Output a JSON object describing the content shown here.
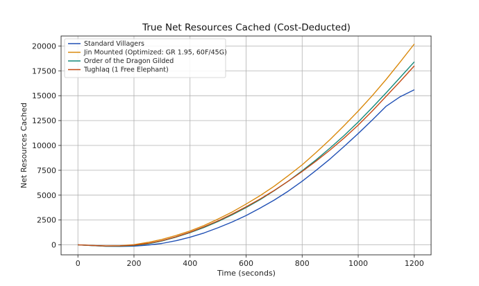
{
  "chart_data": {
    "type": "line",
    "title": "True Net Resources Cached (Cost-Deducted)",
    "xlabel": "Time (seconds)",
    "ylabel": "Net Resources Cached",
    "xlim": [
      -60,
      1260
    ],
    "ylim": [
      -1000,
      21000
    ],
    "xticks": [
      0,
      200,
      400,
      600,
      800,
      1000,
      1200
    ],
    "yticks": [
      0,
      2500,
      5000,
      7500,
      10000,
      12500,
      15000,
      17500,
      20000
    ],
    "grid": true,
    "legend_position": "top-left",
    "x": [
      0,
      50,
      100,
      150,
      200,
      250,
      300,
      350,
      400,
      450,
      500,
      550,
      600,
      650,
      700,
      750,
      800,
      850,
      900,
      950,
      1000,
      1050,
      1100,
      1150,
      1200
    ],
    "series": [
      {
        "name": "Standard Villagers",
        "color": "#1f4fb4",
        "values": [
          0,
          -60,
          -130,
          -150,
          -120,
          -20,
          150,
          420,
          770,
          1200,
          1720,
          2300,
          2950,
          3700,
          4500,
          5400,
          6400,
          7500,
          8650,
          9900,
          11200,
          12550,
          13950,
          14900,
          15600
        ]
      },
      {
        "name": "Jin Mounted (Optimized: GR 1.95, 60F/45G)",
        "color": "#d9880a",
        "values": [
          0,
          -50,
          -100,
          -80,
          20,
          250,
          550,
          950,
          1400,
          1950,
          2600,
          3300,
          4100,
          4950,
          5900,
          6950,
          8050,
          9300,
          10600,
          12000,
          13450,
          15000,
          16650,
          18400,
          20200
        ]
      },
      {
        "name": "Order of the Dragon Gilded",
        "color": "#13887a",
        "values": [
          0,
          -60,
          -130,
          -130,
          -70,
          100,
          400,
          780,
          1230,
          1750,
          2350,
          3020,
          3750,
          4550,
          5450,
          6400,
          7450,
          8550,
          9750,
          11000,
          12350,
          13800,
          15300,
          16850,
          18400
        ]
      },
      {
        "name": "Tughlaq (1 Free Elephant)",
        "color": "#c54a14",
        "values": [
          0,
          -50,
          -110,
          -100,
          -30,
          150,
          430,
          820,
          1280,
          1820,
          2420,
          3100,
          3830,
          4620,
          5470,
          6400,
          7380,
          8430,
          9550,
          10750,
          12050,
          13450,
          14950,
          16450,
          18000
        ]
      }
    ]
  }
}
